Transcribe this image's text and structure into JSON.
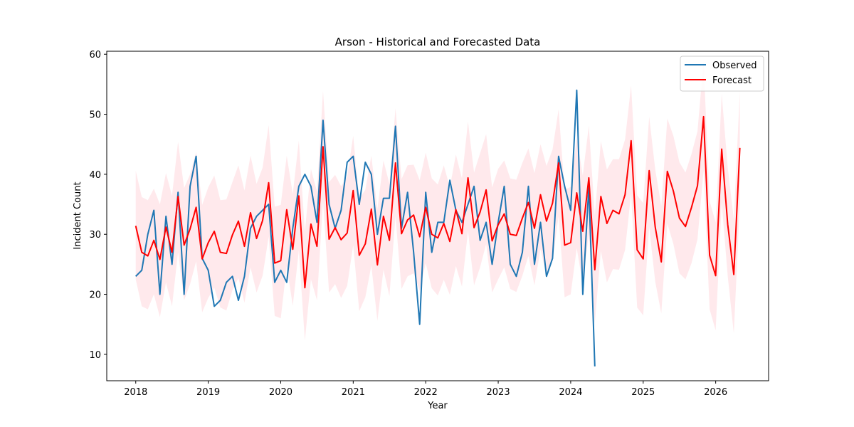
{
  "chart_data": {
    "type": "line",
    "title": "Arson - Historical and Forecasted Data",
    "xlabel": "Year",
    "ylabel": "Incident Count",
    "xlim": [
      2017.6,
      2026.73
    ],
    "ylim": [
      5.6,
      60.5
    ],
    "x_ticks": [
      "2018",
      "2019",
      "2020",
      "2021",
      "2022",
      "2023",
      "2024",
      "2025",
      "2026"
    ],
    "y_ticks": [
      "10",
      "20",
      "30",
      "40",
      "50",
      "60"
    ],
    "x_start": 2018.0,
    "x_step": 0.08333,
    "grid": false,
    "legend_position": "top-right",
    "series": [
      {
        "name": "Observed",
        "color": "#1f77b4",
        "values": [
          23,
          24,
          30,
          34,
          20,
          33,
          25,
          37,
          20,
          38,
          43,
          26,
          24,
          18,
          19,
          22,
          23,
          19,
          23,
          31,
          33,
          34,
          35,
          22,
          24,
          22,
          31,
          38,
          40,
          38,
          32,
          49,
          35,
          31,
          34,
          42,
          43,
          35,
          42,
          40,
          30,
          36,
          36,
          48,
          31,
          37,
          27,
          15,
          37,
          27,
          32,
          32,
          39,
          34,
          32,
          35,
          38,
          29,
          32,
          25,
          32,
          38,
          25,
          23,
          27,
          38,
          25,
          32,
          23,
          26,
          43,
          38,
          34,
          54,
          20,
          38,
          8
        ]
      },
      {
        "name": "Forecast",
        "color": "#ff0000",
        "values": [
          31.4,
          27.0,
          26.4,
          29.0,
          25.8,
          31.2,
          27.0,
          36.3,
          28.2,
          30.9,
          34.5,
          25.9,
          28.6,
          30.5,
          27.0,
          26.8,
          29.9,
          32.2,
          28.0,
          33.6,
          29.3,
          32.3,
          38.6,
          25.2,
          25.6,
          34.1,
          27.5,
          36.4,
          21.1,
          31.7,
          28.0,
          44.6,
          29.2,
          31.1,
          29.1,
          30.2,
          37.3,
          26.5,
          28.4,
          34.2,
          24.9,
          33.0,
          29.0,
          41.9,
          30.1,
          32.4,
          33.2,
          29.6,
          34.5,
          30.0,
          29.4,
          31.8,
          28.8,
          34.1,
          30.1,
          39.4,
          31.1,
          33.7,
          37.4,
          28.9,
          31.6,
          33.4,
          30.0,
          29.8,
          32.7,
          35.3,
          31.0,
          36.6,
          32.2,
          35.2,
          41.9,
          28.2,
          28.6,
          36.9,
          30.5,
          39.4,
          24.1,
          36.3,
          31.8,
          34.0,
          33.4,
          36.6,
          45.6,
          27.4,
          25.9,
          40.6,
          31.2,
          25.4,
          40.5,
          37.2,
          32.7,
          31.3,
          34.5,
          38.1,
          49.6,
          26.5,
          23.1,
          44.2,
          31.6,
          23.3,
          44.4
        ],
        "upper": [
          40.6,
          36.2,
          35.7,
          37.6,
          35.0,
          40.2,
          36.4,
          45.4,
          37.7,
          40.0,
          43.7,
          34.9,
          37.8,
          39.8,
          35.7,
          35.8,
          38.7,
          41.5,
          37.3,
          43.1,
          38.4,
          41.1,
          48.2,
          34.6,
          34.9,
          43.1,
          36.7,
          45.6,
          30.5,
          40.9,
          37.1,
          53.9,
          38.7,
          39.9,
          38.0,
          39.6,
          46.4,
          35.9,
          37.4,
          43.1,
          34.2,
          42.3,
          38.4,
          51.0,
          39.2,
          41.5,
          41.6,
          39.0,
          43.6,
          39.3,
          38.3,
          41.5,
          37.8,
          43.3,
          39.3,
          48.8,
          40.3,
          43.5,
          46.7,
          37.8,
          40.9,
          42.3,
          39.3,
          39.1,
          41.9,
          44.3,
          40.2,
          45.0,
          41.4,
          44.1,
          50.8,
          37.4,
          37.9,
          46.1,
          39.8,
          48.1,
          33.2,
          45.5,
          40.8,
          42.5,
          42.5,
          45.8,
          54.8,
          36.5,
          35.2,
          49.6,
          40.8,
          34.7,
          49.3,
          46.4,
          42.0,
          40.3,
          43.4,
          47.2,
          58.9,
          35.5,
          32.0,
          53.4,
          41.1,
          32.5,
          53.8
        ],
        "lower": [
          22.5,
          18.0,
          17.5,
          20.0,
          16.2,
          22.0,
          18.0,
          27.0,
          19.0,
          21.7,
          25.5,
          17.0,
          19.4,
          21.1,
          17.8,
          17.3,
          20.7,
          22.7,
          18.6,
          24.5,
          20.3,
          23.1,
          29.6,
          16.4,
          16.0,
          24.7,
          18.1,
          27.3,
          12.3,
          22.5,
          19.0,
          35.5,
          20.3,
          21.7,
          19.4,
          21.4,
          28.2,
          17.2,
          19.5,
          24.8,
          15.6,
          24.1,
          19.7,
          33.0,
          20.9,
          23.0,
          23.5,
          20.6,
          25.2,
          21.0,
          19.8,
          22.4,
          19.9,
          24.7,
          21.3,
          30.6,
          21.5,
          24.5,
          28.4,
          20.3,
          22.5,
          24.5,
          20.9,
          20.4,
          23.1,
          26.4,
          21.5,
          27.5,
          23.2,
          25.6,
          33.0,
          19.5,
          20.0,
          27.7,
          21.7,
          30.1,
          15.2,
          27.2,
          22.0,
          24.2,
          24.1,
          27.4,
          36.8,
          17.8,
          16.5,
          31.2,
          22.1,
          16.8,
          31.8,
          28.4,
          23.5,
          22.5,
          25.2,
          29.2,
          40.6,
          17.5,
          14.0,
          35.3,
          23.0,
          13.5,
          35.1
        ],
        "band_color": "#ffb6c1"
      }
    ]
  },
  "legend": {
    "observed_label": "Observed",
    "forecast_label": "Forecast"
  }
}
